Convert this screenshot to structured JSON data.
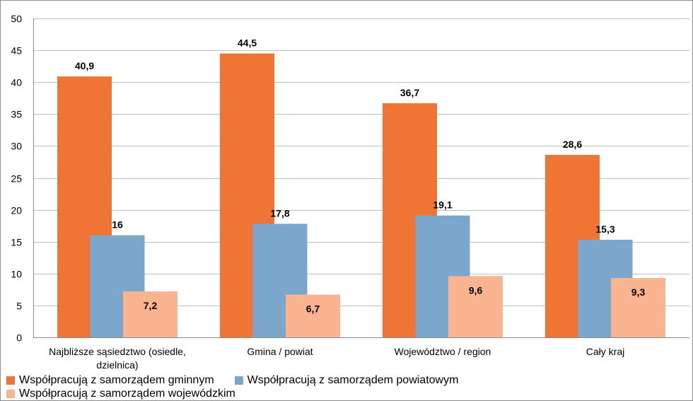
{
  "chart_data": {
    "type": "bar",
    "categories": [
      "Najbliższe sąsiedztwo (osiedle, dzielnica)",
      "Gmina / powiat",
      "Województwo / region",
      "Cały kraj"
    ],
    "series": [
      {
        "name": "Współpracują z samorządem gminnym",
        "values": [
          40.9,
          44.5,
          36.7,
          28.6
        ],
        "labels": [
          "40,9",
          "44,5",
          "36,7",
          "28,6"
        ],
        "color": "#F07534"
      },
      {
        "name": "Współpracują z samorządem powiatowym",
        "values": [
          16,
          17.8,
          19.1,
          15.3
        ],
        "labels": [
          "16",
          "17,8",
          "19,1",
          "15,3"
        ],
        "color": "#7BA7CC"
      },
      {
        "name": "Współpracują z samorządem wojewódzkim",
        "values": [
          7.2,
          6.7,
          9.6,
          9.3
        ],
        "labels": [
          "7,2",
          "6,7",
          "9,6",
          "9,3"
        ],
        "color": "#FAB48F"
      }
    ],
    "ylim": [
      0,
      50
    ],
    "yticks": [
      0,
      5,
      10,
      15,
      20,
      25,
      30,
      35,
      40,
      45,
      50
    ],
    "grid": true,
    "legend_position": "bottom-left"
  }
}
